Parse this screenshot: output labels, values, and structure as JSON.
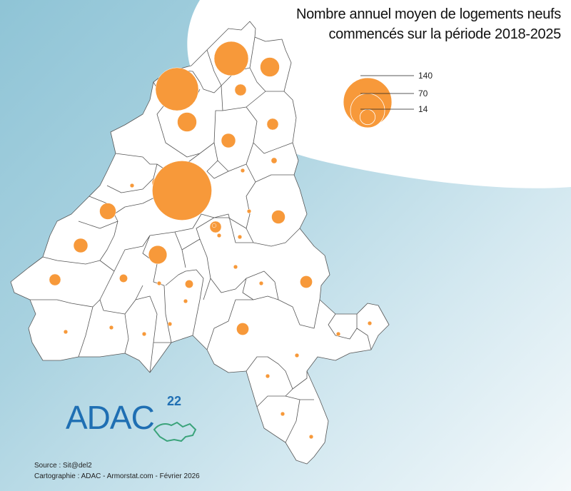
{
  "title": {
    "line1": "Nombre annuel moyen de logements neufs",
    "line2": "commencés sur la période 2018-2025"
  },
  "legend": {
    "values": [
      140,
      70,
      14
    ],
    "labels": [
      "140",
      "70",
      "14"
    ]
  },
  "colors": {
    "symbol": "#f7993a",
    "commune_fill": "#ffffff",
    "commune_stroke": "#555555",
    "logo_blue": "#1f6fb3",
    "logo_green": "#3aa37a"
  },
  "logo": {
    "text": "ADAC",
    "number": "22"
  },
  "footer": {
    "source": "Source : Sit@del2",
    "credits": "Cartographie : ADAC - Armorstat.com - Février 2026"
  },
  "communes": [
    {
      "id": 1,
      "value": 110
    },
    {
      "id": 2,
      "value": 70
    },
    {
      "id": 3,
      "value": 22
    },
    {
      "id": 4,
      "value": 8
    },
    {
      "id": 5,
      "value": 22
    },
    {
      "id": 6,
      "value": 8
    },
    {
      "id": 7,
      "value": 12
    },
    {
      "id": 8,
      "value": 1
    },
    {
      "id": 9,
      "value": 2
    },
    {
      "id": 10,
      "value": 6
    },
    {
      "id": 11,
      "value": 210
    },
    {
      "id": 12,
      "value": 1
    },
    {
      "id": 13,
      "value": 16
    },
    {
      "id": 14,
      "value": 12
    },
    {
      "id": 15,
      "value": 8
    },
    {
      "id": 16,
      "value": 1
    },
    {
      "id": 17,
      "value": 11
    },
    {
      "id": 18,
      "value": 20
    },
    {
      "id": 19,
      "value": 4
    },
    {
      "id": 20,
      "value": 1
    },
    {
      "id": 21,
      "value": 4
    },
    {
      "id": 22,
      "value": 1
    },
    {
      "id": 23,
      "value": 1
    },
    {
      "id": 24,
      "value": 9
    },
    {
      "id": 25,
      "value": 8
    },
    {
      "id": 26,
      "value": 1
    },
    {
      "id": 27,
      "value": 1
    },
    {
      "id": 28,
      "value": 1
    },
    {
      "id": 29,
      "value": 9
    },
    {
      "id": 30,
      "value": 1
    },
    {
      "id": 31,
      "value": 1
    },
    {
      "id": 32,
      "value": 1
    },
    {
      "id": 33,
      "value": 1
    },
    {
      "id": 34,
      "value": 1
    },
    {
      "id": 35,
      "value": 1
    },
    {
      "id": 36,
      "value": 1
    },
    {
      "id": 37,
      "value": 1
    },
    {
      "id": 38,
      "value": 1
    },
    {
      "id": 39,
      "value": 1
    },
    {
      "id": 40,
      "value": 1
    }
  ]
}
